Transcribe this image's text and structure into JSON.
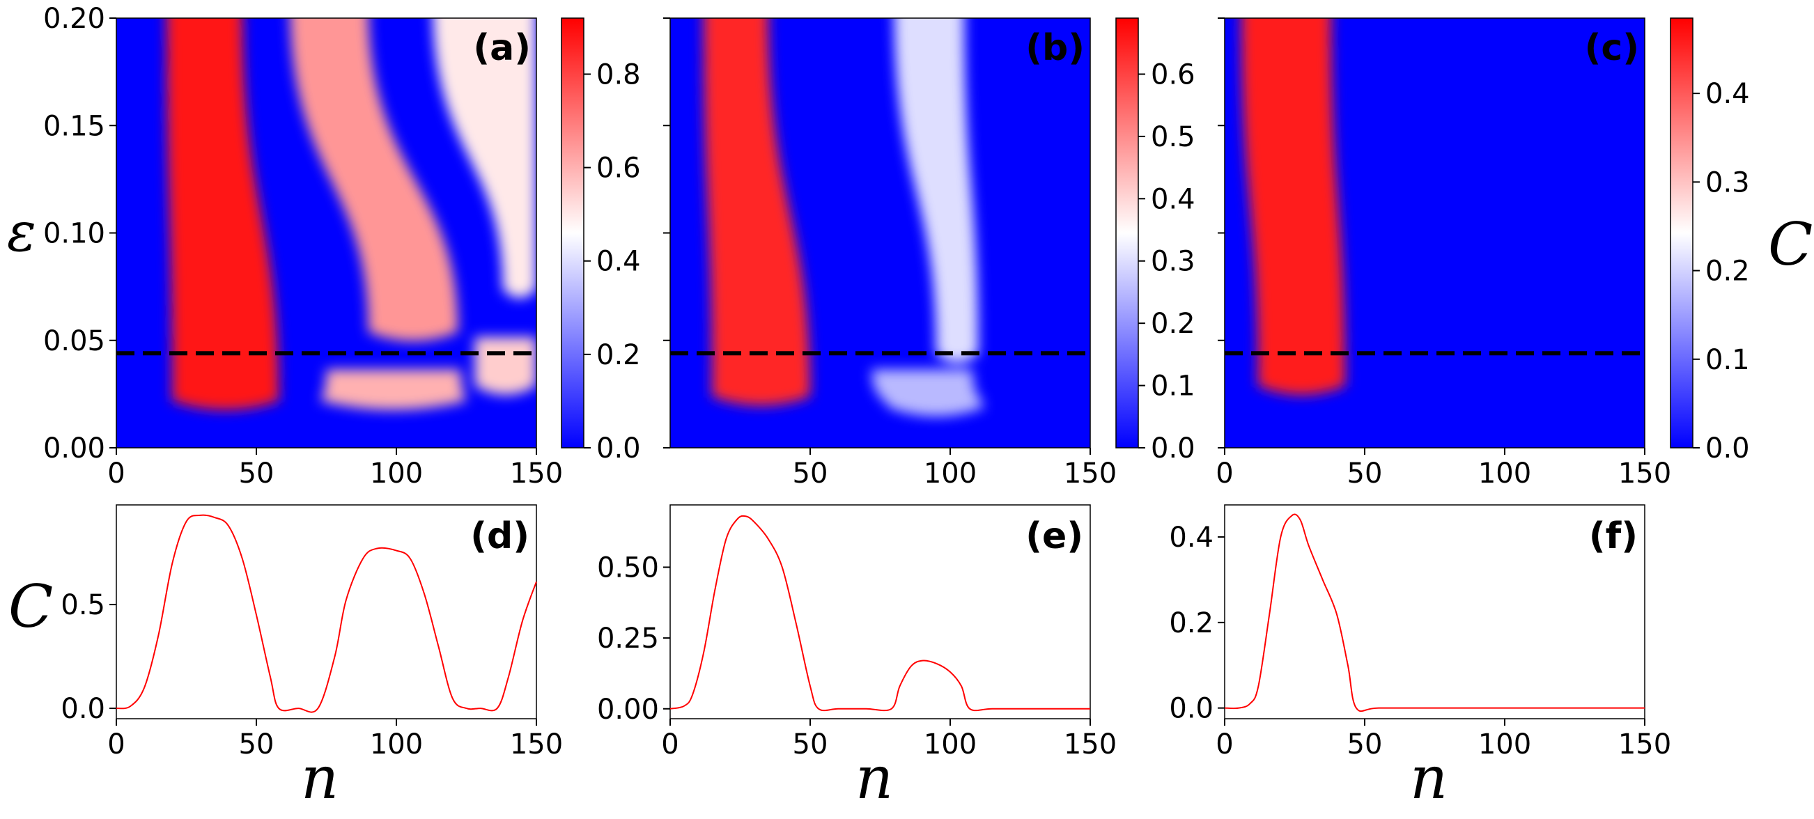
{
  "figure": {
    "y_symbol": "ε",
    "colorbar_symbol": "C",
    "line_y_symbol": "C",
    "x_symbol": "n"
  },
  "colors": {
    "low": "#0000ff",
    "mid": "#ffffff",
    "high": "#ff0000",
    "line": "#ff0000",
    "dashed": "#000000"
  },
  "chart_data": [
    {
      "type": "heatmap",
      "panel": "(a)",
      "colormap": "bwr",
      "xlim": [
        0,
        150
      ],
      "ylim": [
        0,
        0.2
      ],
      "xticks": [
        "0",
        "50",
        "100",
        "150"
      ],
      "yticks": [
        "0.00",
        "0.05",
        "0.10",
        "0.15",
        "0.20"
      ],
      "colorbar": {
        "range": [
          0,
          0.92
        ],
        "ticks": [
          "0.0",
          "0.2",
          "0.4",
          "0.6",
          "0.8"
        ],
        "tick_values": [
          0,
          0.2,
          0.4,
          0.6,
          0.8
        ]
      },
      "reference_line": {
        "style": "dashed",
        "y": 0.044
      },
      "regions": [
        {
          "shape": "band",
          "value": 0.88,
          "n_start_top": 18,
          "n_end_top": 45,
          "n_start_bottom": 20,
          "n_end_bottom": 58,
          "eps_top": 0.2,
          "eps_bottom": 0.018
        },
        {
          "shape": "band",
          "value": 0.65,
          "n_start_top": 62,
          "n_end_top": 90,
          "n_start_bottom": 90,
          "n_end_bottom": 122,
          "eps_top": 0.2,
          "eps_bottom": 0.05
        },
        {
          "shape": "band",
          "value": 0.5,
          "n_start_top": 113,
          "n_end_top": 150,
          "n_start_bottom": 138,
          "n_end_bottom": 150,
          "eps_top": 0.2,
          "eps_bottom": 0.07
        },
        {
          "shape": "band",
          "value": 0.6,
          "n_start_top": 75,
          "n_end_top": 123,
          "n_start_bottom": 73,
          "n_end_bottom": 125,
          "eps_top": 0.03,
          "eps_bottom": 0.018
        },
        {
          "shape": "band",
          "value": 0.55,
          "n_start_top": 128,
          "n_end_top": 150,
          "n_start_bottom": 128,
          "n_end_bottom": 150,
          "eps_top": 0.045,
          "eps_bottom": 0.025
        }
      ]
    },
    {
      "type": "heatmap",
      "panel": "(b)",
      "colormap": "bwr",
      "xlim": [
        0,
        150
      ],
      "ylim": [
        0,
        0.2
      ],
      "xticks": [
        "50",
        "100",
        "150"
      ],
      "yticks": [],
      "colorbar": {
        "range": [
          0,
          0.69
        ],
        "ticks": [
          "0.0",
          "0.1",
          "0.2",
          "0.3",
          "0.4",
          "0.5",
          "0.6"
        ],
        "tick_values": [
          0,
          0.1,
          0.2,
          0.3,
          0.4,
          0.5,
          0.6
        ]
      },
      "reference_line": {
        "style": "dashed",
        "y": 0.044
      },
      "regions": [
        {
          "shape": "band",
          "value": 0.64,
          "n_start_top": 12,
          "n_end_top": 35,
          "n_start_bottom": 15,
          "n_end_bottom": 50,
          "eps_top": 0.2,
          "eps_bottom": 0.02
        },
        {
          "shape": "band",
          "value": 0.3,
          "n_start_top": 80,
          "n_end_top": 105,
          "n_start_bottom": 95,
          "n_end_bottom": 110,
          "eps_top": 0.2,
          "eps_bottom": 0.04
        },
        {
          "shape": "band",
          "value": 0.25,
          "n_start_top": 72,
          "n_end_top": 108,
          "n_start_bottom": 78,
          "n_end_bottom": 112,
          "eps_top": 0.03,
          "eps_bottom": 0.015
        }
      ]
    },
    {
      "type": "heatmap",
      "panel": "(c)",
      "colormap": "bwr",
      "xlim": [
        0,
        150
      ],
      "ylim": [
        0,
        0.2
      ],
      "xticks": [
        "0",
        "50",
        "100",
        "150"
      ],
      "yticks": [],
      "colorbar": {
        "range": [
          0,
          0.485
        ],
        "ticks": [
          "0.0",
          "0.1",
          "0.2",
          "0.3",
          "0.4"
        ],
        "tick_values": [
          0,
          0.1,
          0.2,
          0.3,
          0.4
        ]
      },
      "reference_line": {
        "style": "dashed",
        "y": 0.044
      },
      "regions": [
        {
          "shape": "band",
          "value": 0.46,
          "n_start_top": 6,
          "n_end_top": 38,
          "n_start_bottom": 12,
          "n_end_bottom": 43,
          "eps_top": 0.2,
          "eps_bottom": 0.025
        }
      ]
    },
    {
      "type": "line",
      "panel": "(d)",
      "xlim": [
        0,
        150
      ],
      "ylim": [
        -0.05,
        0.98
      ],
      "xticks": [
        "0",
        "50",
        "100",
        "150"
      ],
      "yticks": [
        "0.0",
        "0.5"
      ],
      "ytick_values": [
        0,
        0.5
      ],
      "x": [
        0,
        5,
        10,
        15,
        20,
        25,
        30,
        35,
        40,
        45,
        50,
        55,
        58,
        65,
        72,
        78,
        82,
        88,
        93,
        100,
        105,
        110,
        115,
        120,
        125,
        130,
        136,
        140,
        145,
        150
      ],
      "y": [
        0,
        0.01,
        0.1,
        0.35,
        0.7,
        0.9,
        0.93,
        0.92,
        0.88,
        0.72,
        0.45,
        0.15,
        0.0,
        0.0,
        0.0,
        0.25,
        0.52,
        0.72,
        0.77,
        0.76,
        0.72,
        0.55,
        0.3,
        0.05,
        0.0,
        0.0,
        0.0,
        0.15,
        0.42,
        0.61
      ]
    },
    {
      "type": "line",
      "panel": "(e)",
      "xlim": [
        0,
        150
      ],
      "ylim": [
        -0.035,
        0.72
      ],
      "xticks": [
        "0",
        "50",
        "100",
        "150"
      ],
      "yticks": [
        "0.00",
        "0.25",
        "0.50"
      ],
      "ytick_values": [
        0,
        0.25,
        0.5
      ],
      "x": [
        0,
        5,
        8,
        12,
        16,
        20,
        24,
        27,
        30,
        35,
        40,
        45,
        50,
        53,
        60,
        70,
        79,
        82,
        86,
        90,
        95,
        100,
        104,
        107,
        115,
        130,
        150
      ],
      "y": [
        0,
        0.01,
        0.05,
        0.2,
        0.42,
        0.6,
        0.67,
        0.68,
        0.66,
        0.6,
        0.5,
        0.3,
        0.08,
        0.0,
        0.0,
        0.0,
        0.0,
        0.08,
        0.15,
        0.17,
        0.16,
        0.13,
        0.08,
        0.0,
        0.0,
        0.0,
        0.0
      ]
    },
    {
      "type": "line",
      "panel": "(f)",
      "xlim": [
        0,
        150
      ],
      "ylim": [
        -0.025,
        0.475
      ],
      "xticks": [
        "0",
        "50",
        "100",
        "150"
      ],
      "yticks": [
        "0.0",
        "0.2",
        "0.4"
      ],
      "ytick_values": [
        0,
        0.2,
        0.4
      ],
      "x": [
        0,
        5,
        9,
        12,
        16,
        20,
        24,
        27,
        30,
        35,
        40,
        44,
        47,
        55,
        80,
        110,
        150
      ],
      "y": [
        0,
        0,
        0.01,
        0.05,
        0.22,
        0.4,
        0.45,
        0.44,
        0.38,
        0.3,
        0.22,
        0.1,
        0.0,
        0.0,
        0.0,
        0.0,
        0.0
      ]
    }
  ]
}
